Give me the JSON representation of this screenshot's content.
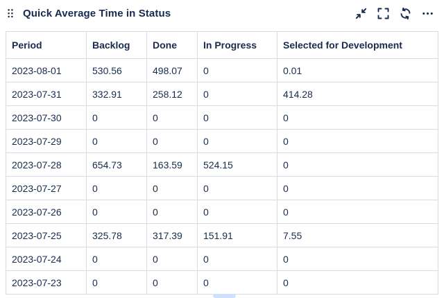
{
  "widget": {
    "title": "Quick Average Time in Status",
    "controls": [
      {
        "name": "collapse-icon"
      },
      {
        "name": "fullscreen-icon"
      },
      {
        "name": "refresh-icon"
      },
      {
        "name": "more-icon"
      }
    ],
    "drag_icon": "drag-handle-icon"
  },
  "table": {
    "columns": [
      "Period",
      "Backlog",
      "Done",
      "In Progress",
      "Selected for Development"
    ],
    "rows": [
      [
        "2023-08-01",
        "530.56",
        "498.07",
        "0",
        "0.01"
      ],
      [
        "2023-07-31",
        "332.91",
        "258.12",
        "0",
        "414.28"
      ],
      [
        "2023-07-30",
        "0",
        "0",
        "0",
        "0"
      ],
      [
        "2023-07-29",
        "0",
        "0",
        "0",
        "0"
      ],
      [
        "2023-07-28",
        "654.73",
        "163.59",
        "524.15",
        "0"
      ],
      [
        "2023-07-27",
        "0",
        "0",
        "0",
        "0"
      ],
      [
        "2023-07-26",
        "0",
        "0",
        "0",
        "0"
      ],
      [
        "2023-07-25",
        "325.78",
        "317.39",
        "151.91",
        "7.55"
      ],
      [
        "2023-07-24",
        "0",
        "0",
        "0",
        "0"
      ],
      [
        "2023-07-23",
        "0",
        "0",
        "0",
        "0"
      ]
    ]
  },
  "colors": {
    "text": "#172B4D",
    "border": "#d8dce2",
    "background": "#ffffff",
    "scroll_hint": "#cfe2fb"
  }
}
